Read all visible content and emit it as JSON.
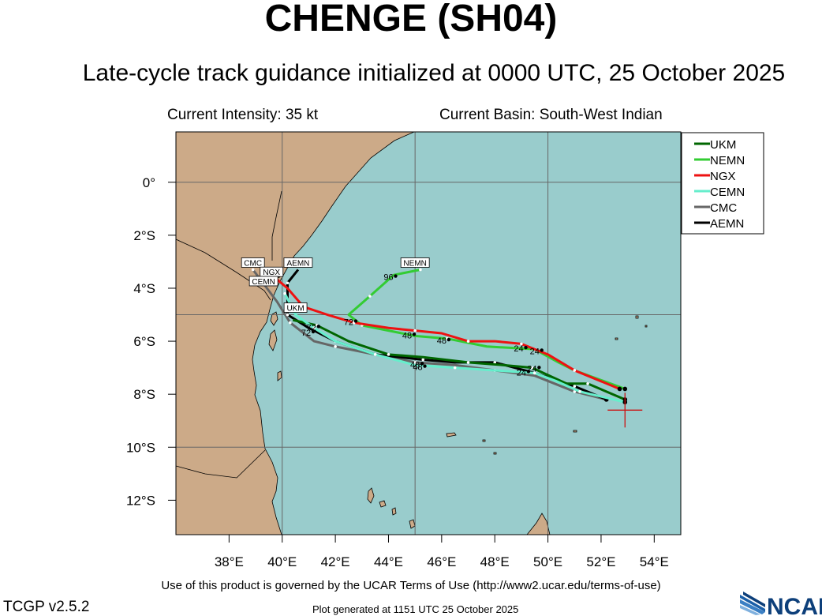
{
  "header": {
    "title": "CHENGE (SH04)",
    "subtitle": "Late-cycle track guidance initialized at 0000 UTC, 25 October 2025",
    "intensity": "Current Intensity: 35 kt",
    "basin": "Current Basin: South-West Indian"
  },
  "footer": {
    "terms": "Use of this product is governed by the UCAR Terms of Use (http://www2.ucar.edu/terms-of-use)",
    "version": "TCGP v2.5.2",
    "generated": "Plot generated at 1151 UTC   25 October 2025",
    "logo_text": "NCAR"
  },
  "map": {
    "lon_range": [
      36.0,
      55.0
    ],
    "lat_range": [
      -13.3,
      1.9
    ],
    "lon_ticks": [
      38,
      40,
      42,
      44,
      46,
      48,
      50,
      52,
      54
    ],
    "lon_tick_labels": [
      "38°E",
      "40°E",
      "42°E",
      "44°E",
      "46°E",
      "48°E",
      "50°E",
      "52°E",
      "54°E"
    ],
    "lat_ticks": [
      0,
      -2,
      -4,
      -6,
      -8,
      -10,
      -12
    ],
    "lat_tick_labels": [
      "0°",
      "2°S",
      "4°S",
      "6°S",
      "8°S",
      "10°S",
      "12°S"
    ],
    "grid_lons": [
      40,
      45,
      50
    ],
    "grid_lats": [
      0,
      -5,
      -10
    ],
    "colors": {
      "ocean": "#99cccc",
      "land": "#ccaa88",
      "grid": "#666666"
    },
    "current_position": {
      "lon": 52.9,
      "lat": -8.6
    }
  },
  "legend": {
    "placement": "top-right",
    "items": [
      {
        "name": "UKM",
        "color": "#006600"
      },
      {
        "name": "NEMN",
        "color": "#33cc33"
      },
      {
        "name": "NGX",
        "color": "#ee1111"
      },
      {
        "name": "CEMN",
        "color": "#66eecc"
      },
      {
        "name": "CMC",
        "color": "#666666"
      },
      {
        "name": "AEMN",
        "color": "#000000"
      }
    ]
  },
  "tracks": [
    {
      "name": "CMC",
      "color": "#666666",
      "points": [
        [
          52.2,
          -8.2
        ],
        [
          51.0,
          -7.9
        ],
        [
          49.5,
          -7.3
        ],
        [
          48.0,
          -7.1
        ],
        [
          46.5,
          -6.9
        ],
        [
          45.0,
          -6.8
        ],
        [
          43.5,
          -6.5
        ],
        [
          42.0,
          -6.2
        ],
        [
          41.2,
          -6.0
        ],
        [
          40.3,
          -5.3
        ],
        [
          39.8,
          -4.5
        ],
        [
          38.9,
          -3.3
        ]
      ],
      "hour_labels": []
    },
    {
      "name": "AEMN",
      "color": "#000000",
      "points": [
        [
          52.2,
          -8.2
        ],
        [
          51.0,
          -7.7
        ],
        [
          49.5,
          -7.2
        ],
        [
          48.0,
          -6.8
        ],
        [
          46.5,
          -6.8
        ],
        [
          45.3,
          -6.7
        ],
        [
          43.5,
          -6.5
        ],
        [
          42.0,
          -6.0
        ],
        [
          41.0,
          -5.5
        ],
        [
          40.2,
          -5.0
        ],
        [
          40.2,
          -4.5
        ],
        [
          40.2,
          -3.8
        ],
        [
          40.6,
          -3.3
        ]
      ],
      "hour_labels": []
    },
    {
      "name": "UKM",
      "color": "#006600",
      "points": [
        [
          52.9,
          -8.2
        ],
        [
          51.5,
          -7.6
        ],
        [
          50.7,
          -7.6
        ],
        [
          49.4,
          -7.0
        ],
        [
          48.3,
          -6.9
        ],
        [
          47.0,
          -6.8
        ],
        [
          45.3,
          -6.6
        ],
        [
          44.0,
          -6.5
        ],
        [
          42.5,
          -6.0
        ],
        [
          41.3,
          -5.4
        ],
        [
          40.4,
          -5.2
        ]
      ],
      "hour_labels": [
        {
          "text": "24",
          "lon": 49.4,
          "lat": -7.05
        },
        {
          "text": "48",
          "lon": 45.0,
          "lat": -6.9
        },
        {
          "text": "72",
          "lon": 41.1,
          "lat": -5.5
        }
      ]
    },
    {
      "name": "NEMN",
      "color": "#33cc33",
      "points": [
        [
          52.9,
          -7.8
        ],
        [
          51.0,
          -7.1
        ],
        [
          50.4,
          -6.8
        ],
        [
          49.5,
          -6.3
        ],
        [
          47.7,
          -6.2
        ],
        [
          46.2,
          -5.9
        ],
        [
          45.0,
          -5.8
        ],
        [
          43.0,
          -5.4
        ],
        [
          42.5,
          -5.0
        ],
        [
          43.3,
          -4.3
        ],
        [
          44.2,
          -3.5
        ],
        [
          45.2,
          -3.3
        ]
      ],
      "hour_labels": [
        {
          "text": "24",
          "lon": 49.5,
          "lat": -6.4
        },
        {
          "text": "48",
          "lon": 46.0,
          "lat": -6.0
        },
        {
          "text": "72",
          "lon": 42.5,
          "lat": -5.3
        },
        {
          "text": "96",
          "lon": 44.0,
          "lat": -3.6
        }
      ]
    },
    {
      "name": "NGX",
      "color": "#ee1111",
      "points": [
        [
          52.7,
          -7.8
        ],
        [
          51.0,
          -7.1
        ],
        [
          50.0,
          -6.5
        ],
        [
          49.0,
          -6.1
        ],
        [
          48.0,
          -6.0
        ],
        [
          47.0,
          -6.0
        ],
        [
          46.0,
          -5.7
        ],
        [
          45.0,
          -5.6
        ],
        [
          44.0,
          -5.5
        ],
        [
          42.7,
          -5.3
        ],
        [
          41.7,
          -5.0
        ],
        [
          40.8,
          -4.7
        ],
        [
          40.2,
          -4.0
        ],
        [
          39.6,
          -3.5
        ]
      ],
      "hour_labels": [
        {
          "text": "24",
          "lon": 48.9,
          "lat": -6.3
        },
        {
          "text": "48",
          "lon": 44.7,
          "lat": -5.8
        },
        {
          "text": "72",
          "lon": 40.6,
          "lat": -4.8
        },
        {
          "text": "96",
          "lon": 39.6,
          "lat": -3.6
        }
      ]
    },
    {
      "name": "CEMN",
      "color": "#66eecc",
      "points": [
        [
          52.9,
          -8.3
        ],
        [
          51.2,
          -7.9
        ],
        [
          50.3,
          -7.5
        ],
        [
          49.5,
          -7.2
        ],
        [
          48.0,
          -7.1
        ],
        [
          46.5,
          -7.0
        ],
        [
          45.0,
          -6.9
        ],
        [
          43.5,
          -6.5
        ],
        [
          42.0,
          -6.0
        ],
        [
          41.2,
          -5.5
        ],
        [
          40.5,
          -5.0
        ],
        [
          40.1,
          -4.2
        ]
      ],
      "hour_labels": [
        {
          "text": "24",
          "lon": 49.0,
          "lat": -7.2
        },
        {
          "text": "48",
          "lon": 45.1,
          "lat": -7.0
        },
        {
          "text": "72",
          "lon": 40.9,
          "lat": -5.7
        }
      ]
    }
  ],
  "end_tags": [
    {
      "text": "CMC",
      "lon": 38.9,
      "lat": -3.3
    },
    {
      "text": "NGX",
      "lon": 39.6,
      "lat": -3.65
    },
    {
      "text": "AEMN",
      "lon": 40.6,
      "lat": -3.3
    },
    {
      "text": "CEMN",
      "lon": 39.3,
      "lat": -4.0
    },
    {
      "text": "UKM",
      "lon": 40.5,
      "lat": -5.0
    },
    {
      "text": "NEMN",
      "lon": 45.0,
      "lat": -3.3
    }
  ]
}
